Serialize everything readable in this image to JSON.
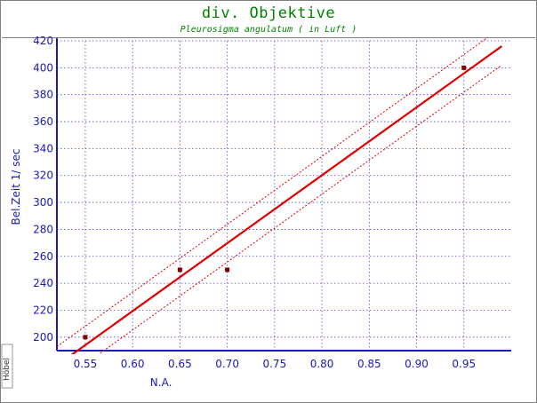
{
  "header": {
    "title": "div. Objektive",
    "subtitle": "Pleurosigma angulatum ( in Luft )"
  },
  "watermark": "Höbel",
  "colors": {
    "title": "#008000",
    "axis": "#1a1ab4",
    "grid": "#4a4ad0",
    "fit": "#e00000",
    "points": "#800000"
  },
  "chart_data": {
    "type": "scatter",
    "title": "div. Objektive",
    "subtitle": "Pleurosigma angulatum ( in Luft )",
    "xlabel": "N.A.",
    "ylabel": "Bel.Zeit 1/    sec",
    "xlim": [
      0.52,
      1.0
    ],
    "ylim": [
      190,
      420
    ],
    "x_ticks": [
      0.55,
      0.6,
      0.65,
      0.7,
      0.75,
      0.8,
      0.85,
      0.9,
      0.95
    ],
    "y_ticks": [
      200,
      220,
      240,
      260,
      280,
      300,
      320,
      340,
      360,
      380,
      400,
      420
    ],
    "grid": true,
    "points": [
      {
        "x": 0.55,
        "y": 200
      },
      {
        "x": 0.65,
        "y": 250
      },
      {
        "x": 0.7,
        "y": 250
      },
      {
        "x": 0.95,
        "y": 400
      }
    ],
    "fit_line": {
      "x": [
        0.52,
        0.99
      ],
      "y": [
        179,
        416
      ]
    },
    "confidence_band": {
      "upper": {
        "x": [
          0.52,
          0.99
        ],
        "y": [
          193,
          430
        ]
      },
      "lower": {
        "x": [
          0.52,
          0.99
        ],
        "y": [
          165,
          402
        ]
      }
    }
  }
}
